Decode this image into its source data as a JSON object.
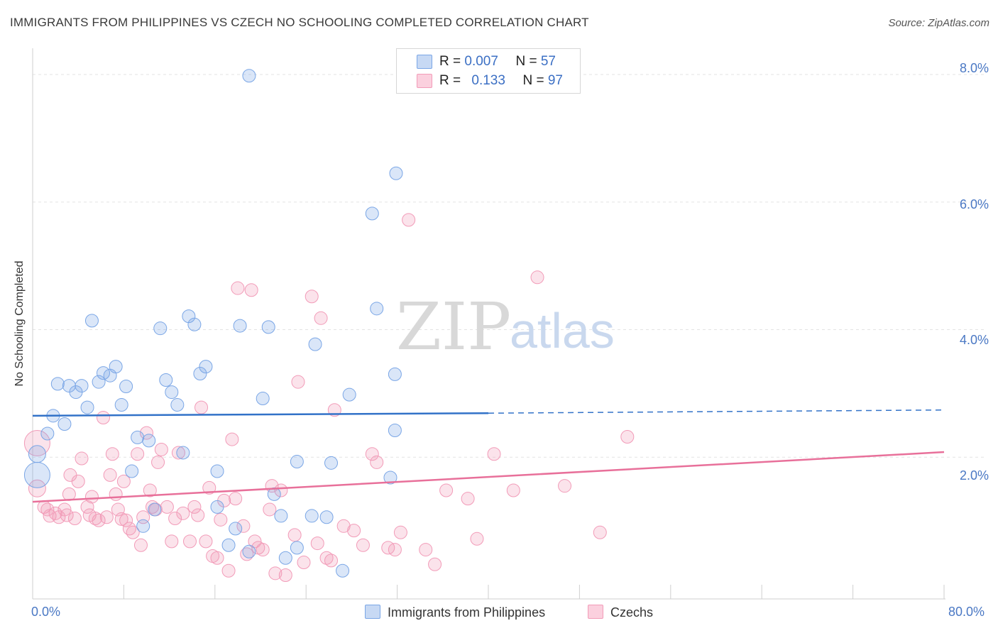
{
  "title": "IMMIGRANTS FROM PHILIPPINES VS CZECH NO SCHOOLING COMPLETED CORRELATION CHART",
  "source": "Source: ZipAtlas.com",
  "watermark": {
    "zip": "ZIP",
    "atlas": "atlas"
  },
  "legend": {
    "r1_label": "R = ",
    "r1_value": "0.007",
    "n1_label": "N = ",
    "n1_value": "57",
    "r2_label": "R = ",
    "r2_value": "0.133",
    "n2_label": "N = ",
    "n2_value": "97"
  },
  "bottom_legend": {
    "s1": "Immigrants from Philippines",
    "s2": "Czechs"
  },
  "chart_data": {
    "type": "scatter",
    "title": "IMMIGRANTS FROM PHILIPPINES VS CZECH NO SCHOOLING COMPLETED CORRELATION CHART",
    "xlabel": "",
    "ylabel": "No Schooling Completed",
    "xlim": [
      0,
      80
    ],
    "ylim": [
      0,
      8.3
    ],
    "x_tick_labels": [
      "0.0%",
      "80.0%"
    ],
    "y_ticks": [
      2,
      4,
      6,
      8
    ],
    "y_tick_labels": [
      "2.0%",
      "4.0%",
      "6.0%",
      "8.0%"
    ],
    "grid": true,
    "legend_position": "top-center",
    "colors": {
      "philippines": "#7aa6e6",
      "czechs": "#f29bb8",
      "philippines_line": "#3272c8",
      "czechs_line": "#e8709a"
    },
    "series": [
      {
        "name": "Immigrants from Philippines",
        "R": 0.007,
        "N": 57,
        "trend": {
          "x": [
            0,
            40
          ],
          "y": [
            2.65,
            2.69
          ],
          "dashed_to": [
            80,
            2.74
          ]
        },
        "points": [
          [
            0.4,
            2.05
          ],
          [
            0.4,
            1.72
          ],
          [
            1.3,
            2.37
          ],
          [
            1.8,
            2.65
          ],
          [
            2.2,
            3.15
          ],
          [
            2.8,
            2.52
          ],
          [
            3.2,
            3.12
          ],
          [
            3.8,
            3.02
          ],
          [
            4.3,
            3.12
          ],
          [
            4.8,
            2.78
          ],
          [
            5.2,
            4.14
          ],
          [
            5.8,
            3.18
          ],
          [
            6.2,
            3.32
          ],
          [
            6.8,
            3.28
          ],
          [
            7.3,
            3.42
          ],
          [
            7.8,
            2.82
          ],
          [
            8.2,
            3.11
          ],
          [
            8.7,
            1.78
          ],
          [
            9.2,
            2.31
          ],
          [
            9.7,
            0.92
          ],
          [
            10.2,
            2.26
          ],
          [
            10.7,
            1.18
          ],
          [
            11.2,
            4.02
          ],
          [
            11.7,
            3.21
          ],
          [
            12.2,
            3.02
          ],
          [
            12.7,
            2.82
          ],
          [
            13.2,
            2.07
          ],
          [
            13.7,
            4.21
          ],
          [
            14.2,
            4.08
          ],
          [
            14.7,
            3.31
          ],
          [
            15.2,
            3.42
          ],
          [
            16.2,
            1.78
          ],
          [
            16.2,
            1.22
          ],
          [
            17.2,
            0.62
          ],
          [
            17.8,
            0.88
          ],
          [
            18.2,
            4.06
          ],
          [
            19.0,
            0.52
          ],
          [
            20.2,
            2.92
          ],
          [
            20.7,
            4.04
          ],
          [
            21.2,
            1.42
          ],
          [
            21.8,
            1.08
          ],
          [
            22.2,
            0.42
          ],
          [
            23.2,
            0.58
          ],
          [
            23.2,
            1.93
          ],
          [
            24.5,
            1.08
          ],
          [
            24.8,
            3.77
          ],
          [
            25.8,
            1.06
          ],
          [
            26.2,
            1.91
          ],
          [
            27.2,
            0.22
          ],
          [
            27.8,
            2.98
          ],
          [
            29.8,
            5.82
          ],
          [
            30.2,
            4.33
          ],
          [
            31.4,
            1.68
          ],
          [
            31.8,
            3.3
          ],
          [
            31.8,
            2.42
          ],
          [
            31.9,
            6.45
          ],
          [
            19.0,
            7.98
          ]
        ]
      },
      {
        "name": "Czechs",
        "R": 0.133,
        "N": 97,
        "trend": {
          "x": [
            0,
            80
          ],
          "y": [
            1.3,
            2.08
          ]
        },
        "points": [
          [
            0.4,
            2.22
          ],
          [
            0.4,
            1.51
          ],
          [
            1.0,
            1.22
          ],
          [
            1.3,
            1.18
          ],
          [
            1.5,
            1.08
          ],
          [
            2.0,
            1.12
          ],
          [
            2.3,
            1.06
          ],
          [
            2.8,
            1.18
          ],
          [
            3.0,
            1.09
          ],
          [
            3.2,
            1.42
          ],
          [
            3.3,
            1.72
          ],
          [
            3.7,
            1.04
          ],
          [
            4.0,
            1.62
          ],
          [
            4.3,
            1.98
          ],
          [
            4.8,
            1.22
          ],
          [
            5.0,
            1.09
          ],
          [
            5.2,
            1.38
          ],
          [
            5.5,
            1.04
          ],
          [
            5.8,
            1.01
          ],
          [
            6.2,
            2.62
          ],
          [
            6.5,
            1.06
          ],
          [
            6.8,
            1.72
          ],
          [
            7.0,
            2.05
          ],
          [
            7.3,
            1.42
          ],
          [
            7.5,
            1.18
          ],
          [
            7.8,
            1.03
          ],
          [
            8.0,
            1.62
          ],
          [
            8.2,
            1.01
          ],
          [
            8.5,
            0.88
          ],
          [
            8.8,
            0.82
          ],
          [
            9.2,
            2.05
          ],
          [
            9.5,
            0.62
          ],
          [
            9.7,
            1.06
          ],
          [
            10.0,
            2.38
          ],
          [
            10.3,
            1.48
          ],
          [
            10.5,
            1.22
          ],
          [
            10.8,
            1.18
          ],
          [
            11.0,
            1.92
          ],
          [
            11.3,
            2.12
          ],
          [
            11.8,
            1.22
          ],
          [
            12.2,
            0.68
          ],
          [
            12.5,
            1.04
          ],
          [
            12.8,
            2.07
          ],
          [
            13.2,
            1.12
          ],
          [
            13.8,
            0.68
          ],
          [
            14.2,
            1.22
          ],
          [
            14.5,
            1.09
          ],
          [
            14.8,
            2.78
          ],
          [
            15.2,
            0.68
          ],
          [
            15.5,
            1.52
          ],
          [
            15.8,
            0.45
          ],
          [
            16.2,
            0.42
          ],
          [
            16.5,
            1.02
          ],
          [
            16.8,
            1.32
          ],
          [
            17.2,
            0.22
          ],
          [
            17.5,
            2.28
          ],
          [
            17.8,
            1.35
          ],
          [
            18.0,
            4.65
          ],
          [
            18.5,
            0.92
          ],
          [
            18.8,
            0.48
          ],
          [
            19.2,
            4.62
          ],
          [
            19.5,
            0.68
          ],
          [
            19.8,
            0.58
          ],
          [
            20.2,
            0.55
          ],
          [
            20.8,
            1.18
          ],
          [
            21.0,
            1.55
          ],
          [
            21.3,
            0.18
          ],
          [
            21.8,
            1.48
          ],
          [
            22.2,
            0.15
          ],
          [
            23.0,
            0.78
          ],
          [
            23.3,
            3.18
          ],
          [
            23.8,
            0.35
          ],
          [
            24.5,
            4.52
          ],
          [
            25.0,
            0.65
          ],
          [
            25.3,
            4.18
          ],
          [
            25.8,
            0.42
          ],
          [
            26.2,
            0.38
          ],
          [
            26.5,
            2.74
          ],
          [
            27.3,
            0.92
          ],
          [
            28.2,
            0.85
          ],
          [
            29.0,
            0.62
          ],
          [
            29.8,
            2.05
          ],
          [
            30.2,
            1.92
          ],
          [
            31.2,
            0.58
          ],
          [
            31.8,
            0.55
          ],
          [
            32.3,
            0.82
          ],
          [
            33.0,
            5.72
          ],
          [
            34.5,
            0.55
          ],
          [
            35.3,
            0.32
          ],
          [
            36.3,
            1.48
          ],
          [
            38.2,
            1.35
          ],
          [
            39.0,
            0.72
          ],
          [
            40.5,
            2.05
          ],
          [
            42.2,
            1.48
          ],
          [
            44.3,
            4.82
          ],
          [
            46.7,
            1.55
          ],
          [
            49.8,
            0.82
          ],
          [
            52.2,
            2.32
          ]
        ]
      }
    ]
  }
}
